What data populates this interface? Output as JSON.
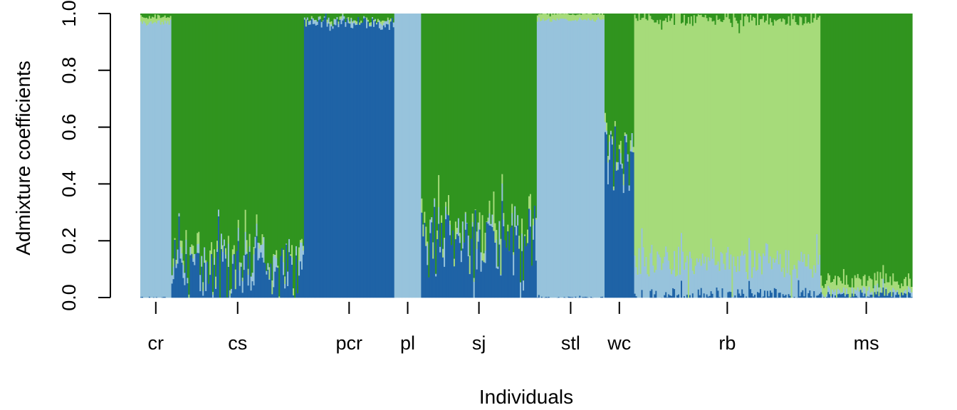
{
  "chart_data": {
    "type": "bar",
    "stacked": true,
    "title": "",
    "xlabel": "Individuals",
    "ylabel": "Admixture coefficients",
    "ylim": [
      0,
      1
    ],
    "yticks": [
      "0.0",
      "0.2",
      "0.4",
      "0.6",
      "0.8",
      "1.0"
    ],
    "grid": false,
    "legend": "none",
    "cluster_colors": [
      "#1f63a6",
      "#97c3dc",
      "#a6db7a",
      "#30941f"
    ],
    "populations": [
      {
        "label": "cr",
        "n": 22,
        "mean": [
          0.0,
          0.97,
          0.02,
          0.01
        ],
        "spread": 0.02
      },
      {
        "label": "cs",
        "n": 94,
        "mean": [
          0.1,
          0.02,
          0.01,
          0.87
        ],
        "spread": 0.1
      },
      {
        "label": "pcr",
        "n": 64,
        "mean": [
          0.97,
          0.01,
          0.0,
          0.02
        ],
        "spread": 0.03
      },
      {
        "label": "pl",
        "n": 19,
        "mean": [
          0.0,
          1.0,
          0.0,
          0.0
        ],
        "spread": 0.0
      },
      {
        "label": "sj",
        "n": 82,
        "mean": [
          0.2,
          0.02,
          0.01,
          0.77
        ],
        "spread": 0.14
      },
      {
        "label": "stl",
        "n": 48,
        "mean": [
          0.0,
          0.98,
          0.02,
          0.0
        ],
        "spread": 0.01
      },
      {
        "label": "wc",
        "n": 21,
        "mean": [
          0.52,
          0.02,
          0.01,
          0.45
        ],
        "spread": 0.1
      },
      {
        "label": "rb",
        "n": 132,
        "mean": [
          0.01,
          0.12,
          0.85,
          0.02
        ],
        "spread": 0.06
      },
      {
        "label": "ms",
        "n": 65,
        "mean": [
          0.01,
          0.01,
          0.04,
          0.94
        ],
        "spread": 0.03
      }
    ]
  }
}
